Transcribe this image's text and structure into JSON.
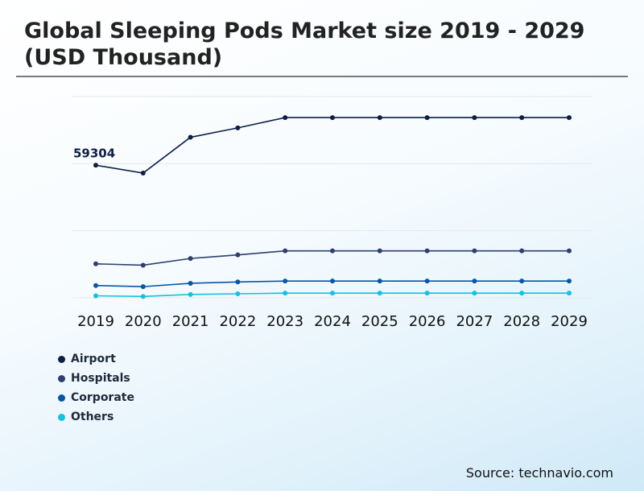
{
  "title": "Global Sleeping Pods Market size 2019 - 2029 (USD Thousand)",
  "source": "Source: technavio.com",
  "colors": {
    "Airport": "#0d1f45",
    "Hospitals": "#2e3f6e",
    "Corporate": "#0b56a4",
    "Others": "#17c0dd"
  },
  "chart_data": {
    "type": "line",
    "x": [
      "2019",
      "2020",
      "2021",
      "2022",
      "2023",
      "2024",
      "2025",
      "2026",
      "2027",
      "2028",
      "2029"
    ],
    "ylim": [
      0,
      90000
    ],
    "grid": true,
    "legend_position": "bottom-left",
    "series": [
      {
        "name": "Airport",
        "values": [
          59304,
          55800,
          71800,
          76000,
          80600,
          80600,
          80600,
          80600,
          80600,
          80600,
          80600
        ]
      },
      {
        "name": "Hospitals",
        "values": [
          15200,
          14600,
          17600,
          19200,
          21000,
          21000,
          21000,
          21000,
          21000,
          21000,
          21000
        ]
      },
      {
        "name": "Corporate",
        "values": [
          5500,
          5000,
          6500,
          7100,
          7500,
          7500,
          7500,
          7500,
          7500,
          7500,
          7500
        ]
      },
      {
        "name": "Others",
        "values": [
          900,
          600,
          1500,
          1800,
          2100,
          2100,
          2100,
          2100,
          2100,
          2100,
          2100
        ]
      }
    ],
    "annotations": [
      {
        "series": "Airport",
        "x": "2019",
        "text": "59304"
      }
    ]
  }
}
